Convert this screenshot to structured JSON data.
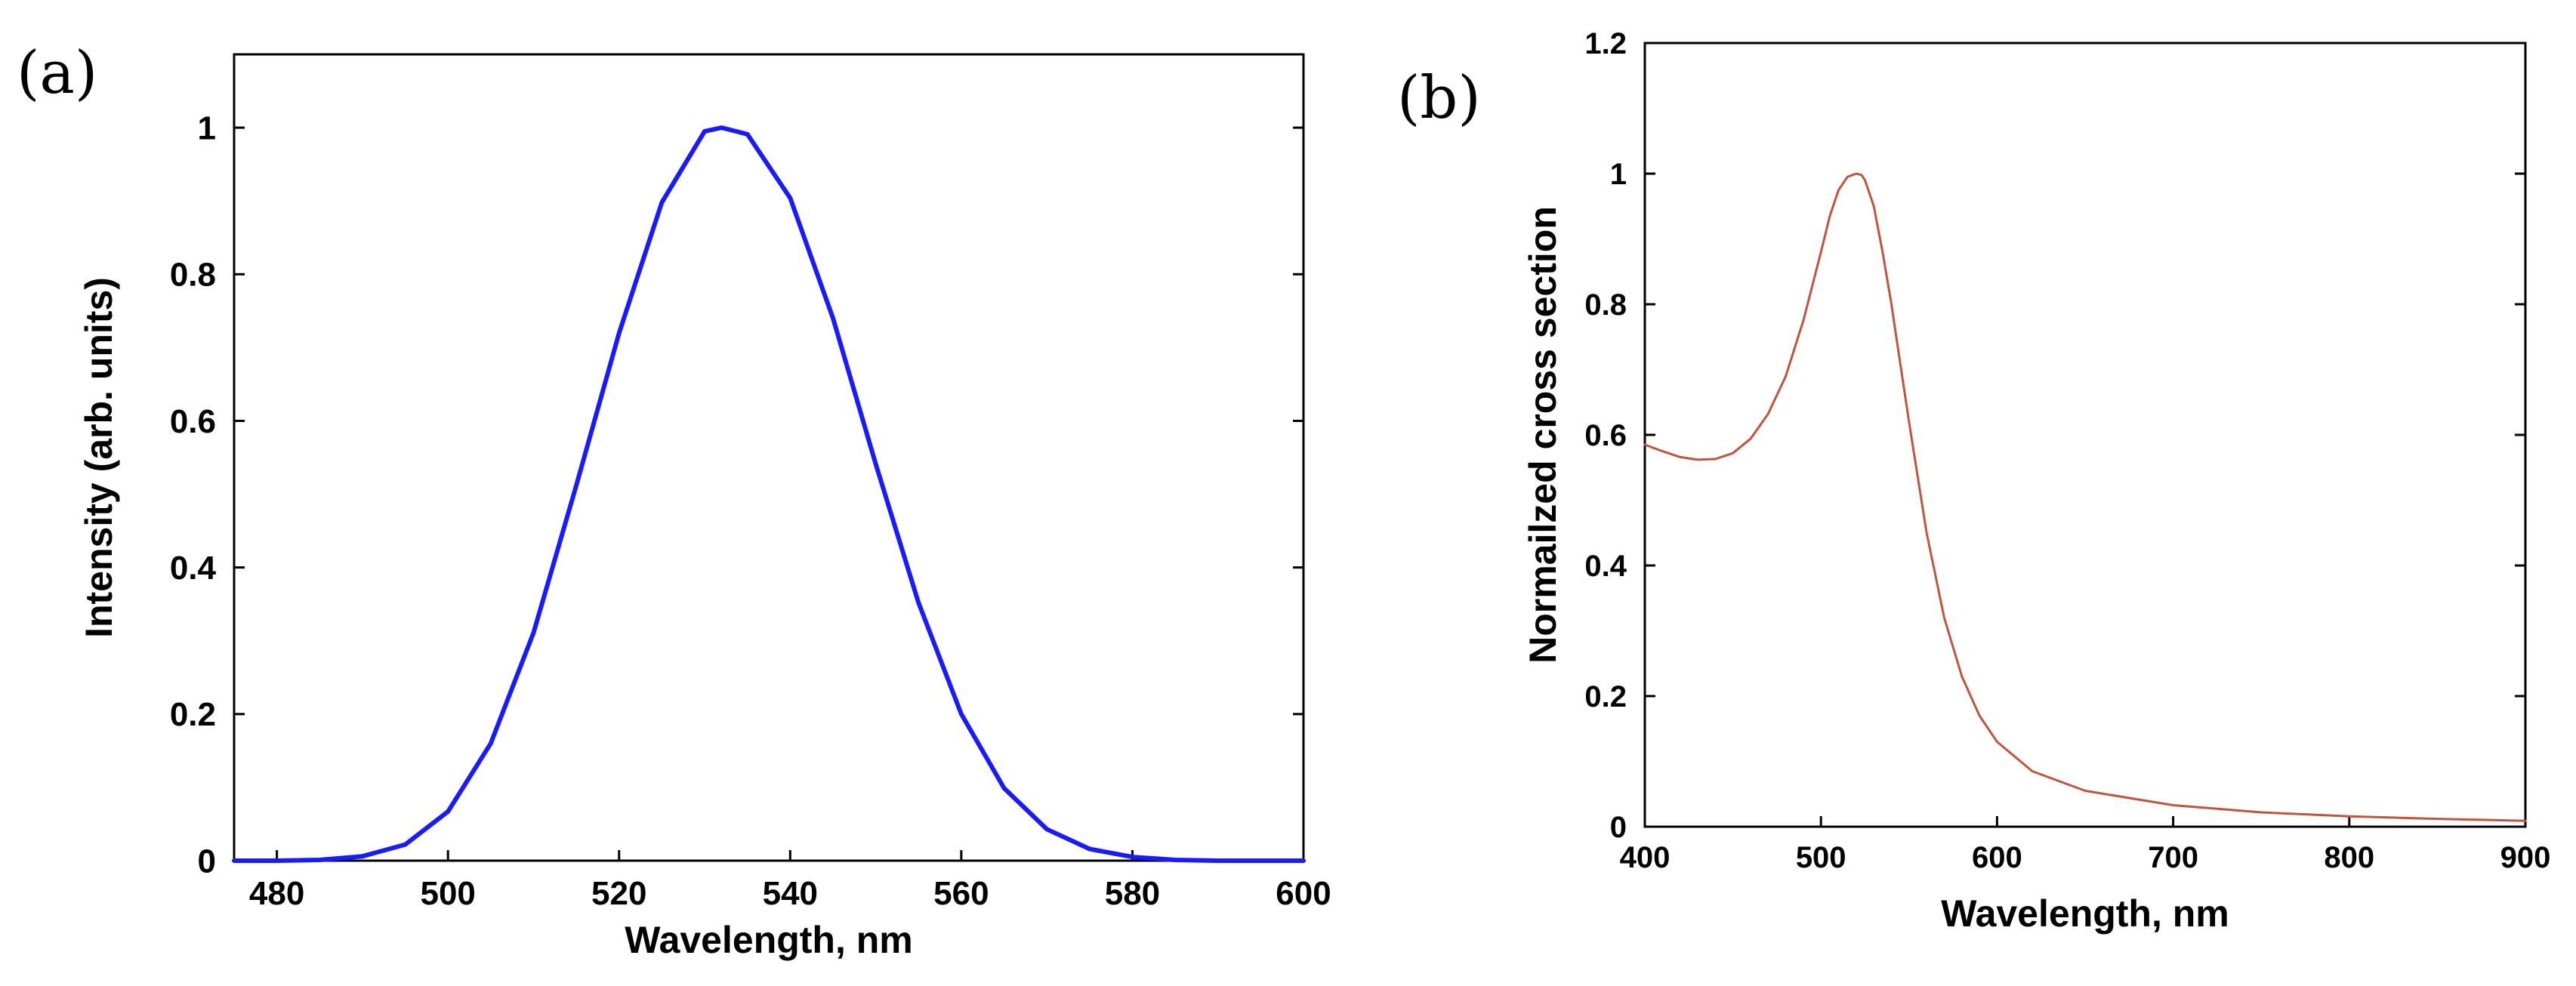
{
  "panels": {
    "a": {
      "label": "(a)"
    },
    "b": {
      "label": "(b)"
    }
  },
  "chart_data": [
    {
      "type": "line",
      "panel": "a",
      "title": "",
      "xlabel": "Wavelength, nm",
      "ylabel": "Intensity (arb. units)",
      "xlim": [
        475,
        600
      ],
      "ylim": [
        0,
        1.1
      ],
      "xticks": [
        480,
        500,
        520,
        540,
        560,
        580,
        600
      ],
      "yticks": [
        0,
        0.2,
        0.4,
        0.6,
        0.8,
        1
      ],
      "xtick_labels": [
        "480",
        "500",
        "520",
        "540",
        "560",
        "580",
        "600"
      ],
      "ytick_labels": [
        "0",
        "0.2",
        "0.4",
        "0.6",
        "0.8",
        "1"
      ],
      "color": "#1a1aff",
      "series": [
        {
          "name": "intensity",
          "x": [
            475,
            480,
            485,
            490,
            495,
            500,
            505,
            510,
            515,
            520,
            525,
            530,
            532,
            535,
            540,
            545,
            550,
            555,
            560,
            565,
            570,
            575,
            580,
            585,
            590,
            595,
            600
          ],
          "y": [
            0.0,
            0.0,
            0.001,
            0.006,
            0.022,
            0.067,
            0.16,
            0.311,
            0.512,
            0.72,
            0.898,
            0.995,
            1.0,
            0.991,
            0.904,
            0.74,
            0.541,
            0.352,
            0.2,
            0.099,
            0.043,
            0.016,
            0.005,
            0.001,
            0.0,
            0.0,
            0.0
          ]
        }
      ]
    },
    {
      "type": "line",
      "panel": "b",
      "title": "",
      "xlabel": "Wavelength, nm",
      "ylabel": "Normailzed cross section",
      "xlim": [
        400,
        900
      ],
      "ylim": [
        0,
        1.2
      ],
      "xticks": [
        400,
        500,
        600,
        700,
        800,
        900
      ],
      "yticks": [
        0,
        0.2,
        0.4,
        0.6,
        0.8,
        1,
        1.2
      ],
      "xtick_labels": [
        "400",
        "500",
        "600",
        "700",
        "800",
        "900"
      ],
      "ytick_labels": [
        "0",
        "0.2",
        "0.4",
        "0.6",
        "0.8",
        "1",
        "1.2"
      ],
      "color": "#c0553f",
      "series": [
        {
          "name": "cross section",
          "x": [
            400,
            410,
            420,
            430,
            440,
            450,
            460,
            470,
            480,
            490,
            500,
            505,
            510,
            515,
            520,
            523,
            525,
            530,
            535,
            540,
            545,
            550,
            560,
            570,
            580,
            590,
            600,
            620,
            650,
            700,
            750,
            800,
            850,
            900
          ],
          "y": [
            0.585,
            0.575,
            0.566,
            0.562,
            0.563,
            0.572,
            0.594,
            0.632,
            0.69,
            0.775,
            0.88,
            0.935,
            0.975,
            0.995,
            1.0,
            0.998,
            0.99,
            0.95,
            0.88,
            0.8,
            0.71,
            0.62,
            0.45,
            0.32,
            0.23,
            0.17,
            0.13,
            0.085,
            0.055,
            0.033,
            0.022,
            0.016,
            0.012,
            0.009
          ]
        }
      ]
    }
  ]
}
